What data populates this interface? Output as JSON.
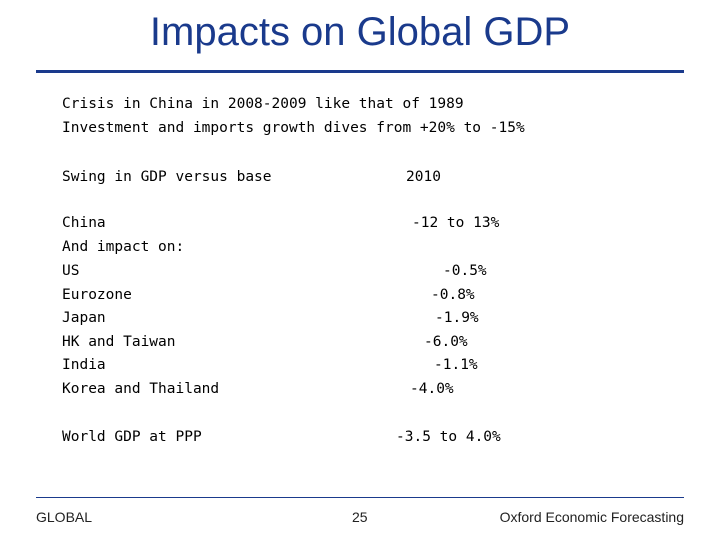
{
  "title": "Impacts on Global GDP",
  "intro": [
    "Crisis in China in 2008-2009 like that of 1989",
    "Investment and imports growth dives from +20% to -15%"
  ],
  "table": {
    "header_label": "Swing in GDP versus base",
    "header_year": "2010",
    "rows": [
      {
        "label": "China",
        "value": "-12 to 13%"
      },
      {
        "label": "And impact on:",
        "value": ""
      },
      {
        "label": "US",
        "value": "-0.5%"
      },
      {
        "label": "Eurozone",
        "value": "-0.8%"
      },
      {
        "label": "Japan",
        "value": "-1.9%"
      },
      {
        "label": "HK and Taiwan",
        "value": "-6.0%"
      },
      {
        "label": "India",
        "value": "-1.1%"
      },
      {
        "label": "Korea and Thailand",
        "value": "-4.0%"
      }
    ],
    "world_label": "World GDP at PPP",
    "world_value": "-3.5 to 4.0%"
  },
  "footer": {
    "left": "GLOBAL",
    "page_number": "25",
    "right": "Oxford Economic Forecasting"
  },
  "colors": {
    "title": "#1a3a8c",
    "rule": "#1a3a8c"
  }
}
